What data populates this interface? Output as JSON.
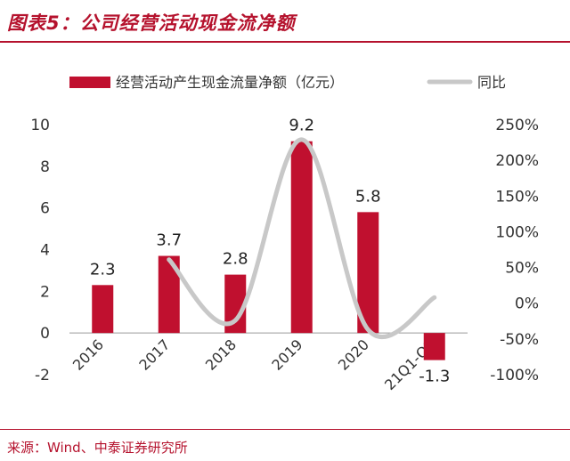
{
  "header": {
    "title": "图表5：公司经营活动现金流净额"
  },
  "footer": {
    "source": "来源：Wind、中泰证券研究所"
  },
  "colors": {
    "bar": "#c0102f",
    "line": "#c8c8c8",
    "title": "#b5122d",
    "axis_text": "#333333"
  },
  "chart_data": {
    "type": "bar",
    "title": "图表5：公司经营活动现金流净额",
    "categories": [
      "2016",
      "2017",
      "2018",
      "2019",
      "2020",
      "21Q1-Q3"
    ],
    "series": [
      {
        "name": "经营活动产生现金流量净额（亿元）",
        "type": "bar",
        "axis": "left",
        "values": [
          2.3,
          3.7,
          2.8,
          9.2,
          5.8,
          -1.3
        ],
        "data_labels": [
          "2.3",
          "3.7",
          "2.8",
          "9.2",
          "5.8",
          "-1.3"
        ]
      },
      {
        "name": "同比",
        "type": "line",
        "axis": "right",
        "smooth": true,
        "values": [
          null,
          61,
          -24,
          229,
          -37,
          8
        ]
      }
    ],
    "y_left": {
      "range": [
        -2,
        10
      ],
      "ticks": [
        "-2",
        "0",
        "2",
        "4",
        "6",
        "8",
        "10"
      ]
    },
    "y_right": {
      "range": [
        -100,
        250
      ],
      "ticks": [
        "-100%",
        "-50%",
        "0%",
        "50%",
        "100%",
        "150%",
        "200%",
        "250%"
      ]
    },
    "grid": false,
    "legend": "top"
  }
}
